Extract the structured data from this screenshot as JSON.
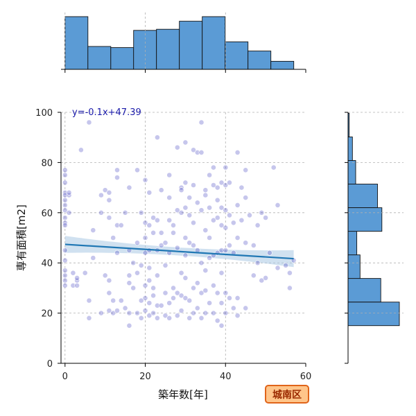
{
  "chart_data": {
    "type": "scatter",
    "xlabel": "築年数[年]",
    "ylabel": "専有面積[m2]",
    "xlim": [
      -1,
      60
    ],
    "ylim": [
      0,
      100
    ],
    "xticks": [
      0,
      20,
      40,
      60
    ],
    "yticks": [
      0,
      20,
      40,
      60,
      80,
      100
    ],
    "grid": true,
    "annotation": "y=-0.1x+47.39",
    "badge": "城南区",
    "regression": {
      "slope": -0.1,
      "intercept": 47.39,
      "x_range": [
        0,
        57
      ]
    },
    "colors": {
      "points": "#3333bb",
      "regression_line": "#1f77b4",
      "confidence_band": "#aac8e4",
      "histogram_bars": "#5b9bd5",
      "badge_fill": "#ffc58a",
      "badge_border": "#e0641a"
    },
    "marginal_x_histogram": {
      "bins": [
        0,
        5.7,
        11.4,
        17.1,
        22.8,
        28.5,
        34.2,
        39.9,
        45.6,
        51.3,
        57
      ],
      "counts": [
        46,
        20,
        19,
        34,
        35,
        42,
        46,
        24,
        16,
        7
      ]
    },
    "marginal_y_histogram": {
      "bins": [
        15,
        24.4,
        33.8,
        43.2,
        52.6,
        62,
        71.4,
        80.8,
        90.2,
        99.6
      ],
      "counts": [
        47,
        30,
        11,
        8,
        31,
        27,
        7,
        4,
        1
      ]
    },
    "points": [
      [
        0,
        77
      ],
      [
        0,
        75
      ],
      [
        0,
        72
      ],
      [
        0,
        68
      ],
      [
        0,
        67
      ],
      [
        0,
        65
      ],
      [
        0,
        63
      ],
      [
        0,
        61
      ],
      [
        0,
        58
      ],
      [
        0,
        56
      ],
      [
        0,
        55
      ],
      [
        0,
        37
      ],
      [
        0,
        35
      ],
      [
        0,
        33
      ],
      [
        0,
        31
      ],
      [
        0,
        45
      ],
      [
        0,
        41
      ],
      [
        1,
        67
      ],
      [
        1,
        68
      ],
      [
        1,
        60
      ],
      [
        2,
        36
      ],
      [
        2,
        31
      ],
      [
        3,
        33
      ],
      [
        3,
        34
      ],
      [
        3,
        31
      ],
      [
        4,
        85
      ],
      [
        5,
        36
      ],
      [
        6,
        96
      ],
      [
        6,
        25
      ],
      [
        6,
        18
      ],
      [
        7,
        42
      ],
      [
        7,
        53
      ],
      [
        9,
        60
      ],
      [
        9,
        67
      ],
      [
        9,
        20
      ],
      [
        10,
        69
      ],
      [
        10,
        35
      ],
      [
        11,
        68
      ],
      [
        11,
        65
      ],
      [
        11,
        58
      ],
      [
        11,
        33
      ],
      [
        11,
        28
      ],
      [
        11,
        21
      ],
      [
        12,
        50
      ],
      [
        12,
        25
      ],
      [
        12,
        20
      ],
      [
        13,
        77
      ],
      [
        13,
        74
      ],
      [
        13,
        55
      ],
      [
        13,
        44
      ],
      [
        13,
        21
      ],
      [
        14,
        55
      ],
      [
        14,
        25
      ],
      [
        15,
        60
      ],
      [
        15,
        22
      ],
      [
        16,
        70
      ],
      [
        16,
        45
      ],
      [
        16,
        35
      ],
      [
        16,
        32
      ],
      [
        16,
        20
      ],
      [
        16,
        15
      ],
      [
        17,
        40
      ],
      [
        17,
        30
      ],
      [
        18,
        77
      ],
      [
        18,
        48
      ],
      [
        18,
        36
      ],
      [
        18,
        20
      ],
      [
        19,
        60
      ],
      [
        19,
        39
      ],
      [
        19,
        25
      ],
      [
        19,
        18
      ],
      [
        20,
        73
      ],
      [
        20,
        56
      ],
      [
        20,
        50
      ],
      [
        20,
        44
      ],
      [
        20,
        31
      ],
      [
        20,
        26
      ],
      [
        20,
        21
      ],
      [
        21,
        68
      ],
      [
        21,
        55
      ],
      [
        21,
        45
      ],
      [
        21,
        38
      ],
      [
        21,
        33
      ],
      [
        21,
        24
      ],
      [
        21,
        19
      ],
      [
        22,
        58
      ],
      [
        22,
        52
      ],
      [
        22,
        30
      ],
      [
        22,
        27
      ],
      [
        22,
        20
      ],
      [
        23,
        90
      ],
      [
        23,
        57
      ],
      [
        23,
        45
      ],
      [
        23,
        35
      ],
      [
        23,
        23
      ],
      [
        23,
        18
      ],
      [
        24,
        69
      ],
      [
        24,
        52
      ],
      [
        24,
        47
      ],
      [
        24,
        23
      ],
      [
        25,
        48
      ],
      [
        25,
        39
      ],
      [
        25,
        28
      ],
      [
        25,
        19
      ],
      [
        26,
        75
      ],
      [
        26,
        66
      ],
      [
        26,
        57
      ],
      [
        26,
        44
      ],
      [
        26,
        24
      ],
      [
        26,
        18
      ],
      [
        27,
        55
      ],
      [
        27,
        52
      ],
      [
        27,
        30
      ],
      [
        27,
        26
      ],
      [
        28,
        86
      ],
      [
        28,
        61
      ],
      [
        28,
        46
      ],
      [
        28,
        28
      ],
      [
        28,
        19
      ],
      [
        29,
        70
      ],
      [
        29,
        69
      ],
      [
        29,
        60
      ],
      [
        29,
        36
      ],
      [
        29,
        27
      ],
      [
        29,
        21
      ],
      [
        30,
        88
      ],
      [
        30,
        72
      ],
      [
        30,
        62
      ],
      [
        30,
        50
      ],
      [
        30,
        43
      ],
      [
        30,
        34
      ],
      [
        30,
        26
      ],
      [
        31,
        66
      ],
      [
        31,
        59
      ],
      [
        31,
        48
      ],
      [
        31,
        25
      ],
      [
        31,
        18
      ],
      [
        32,
        85
      ],
      [
        32,
        71
      ],
      [
        32,
        56
      ],
      [
        32,
        47
      ],
      [
        32,
        30
      ],
      [
        32,
        20
      ],
      [
        33,
        84
      ],
      [
        33,
        64
      ],
      [
        33,
        45
      ],
      [
        33,
        32
      ],
      [
        33,
        22
      ],
      [
        34,
        96
      ],
      [
        34,
        84
      ],
      [
        34,
        61
      ],
      [
        34,
        40
      ],
      [
        34,
        28
      ],
      [
        34,
        18
      ],
      [
        35,
        69
      ],
      [
        35,
        67
      ],
      [
        35,
        53
      ],
      [
        35,
        37
      ],
      [
        35,
        29
      ],
      [
        35,
        20
      ],
      [
        36,
        75
      ],
      [
        36,
        62
      ],
      [
        36,
        50
      ],
      [
        36,
        42
      ],
      [
        36,
        24
      ],
      [
        37,
        78
      ],
      [
        37,
        71
      ],
      [
        37,
        57
      ],
      [
        37,
        43
      ],
      [
        37,
        31
      ],
      [
        37,
        20
      ],
      [
        38,
        70
      ],
      [
        38,
        65
      ],
      [
        38,
        58
      ],
      [
        38,
        44
      ],
      [
        38,
        28
      ],
      [
        38,
        17
      ],
      [
        39,
        72
      ],
      [
        39,
        62
      ],
      [
        39,
        55
      ],
      [
        39,
        45
      ],
      [
        39,
        36
      ],
      [
        39,
        24
      ],
      [
        39,
        15
      ],
      [
        40,
        78
      ],
      [
        40,
        71
      ],
      [
        40,
        61
      ],
      [
        40,
        54
      ],
      [
        40,
        45
      ],
      [
        40,
        28
      ],
      [
        40,
        20
      ],
      [
        41,
        72
      ],
      [
        41,
        59
      ],
      [
        41,
        47
      ],
      [
        41,
        26
      ],
      [
        42,
        56
      ],
      [
        42,
        44
      ],
      [
        42,
        22
      ],
      [
        43,
        84
      ],
      [
        43,
        63
      ],
      [
        43,
        50
      ],
      [
        43,
        19
      ],
      [
        43,
        26
      ],
      [
        44,
        70
      ],
      [
        44,
        57
      ],
      [
        45,
        77
      ],
      [
        45,
        66
      ],
      [
        45,
        48
      ],
      [
        45,
        22
      ],
      [
        46,
        59
      ],
      [
        47,
        47
      ],
      [
        47,
        35
      ],
      [
        48,
        55
      ],
      [
        48,
        40
      ],
      [
        49,
        60
      ],
      [
        49,
        33
      ],
      [
        50,
        58
      ],
      [
        50,
        34
      ],
      [
        51,
        44
      ],
      [
        52,
        78
      ],
      [
        53,
        63
      ],
      [
        53,
        38
      ],
      [
        55,
        39
      ],
      [
        56,
        36
      ],
      [
        56,
        30
      ],
      [
        57,
        41
      ]
    ]
  }
}
